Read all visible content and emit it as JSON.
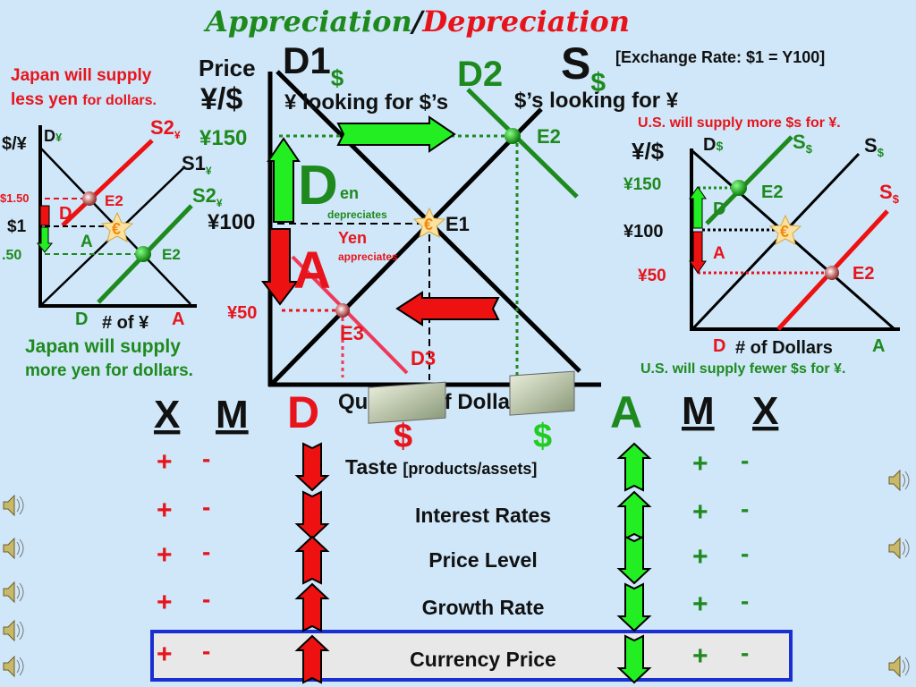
{
  "title": {
    "appreciation": "Appreciation",
    "slash": "/",
    "depreciation": "Depreciation"
  },
  "colors": {
    "background": "#cfe7f8",
    "red": "#e8141b",
    "green": "#1e8a1e",
    "bright_green": "#22ee22",
    "highlight_border": "#1a2fd0"
  },
  "main_graph": {
    "price_label": "Price",
    "unit_label": "¥/$",
    "exchange_rate": "[Exchange Rate:  $1 =  Y100]",
    "d1": "D1",
    "d1_sub": "$",
    "d2": "D2",
    "s": "S",
    "s_sub": "$",
    "yen_looking": "¥ looking for ",
    "yen_looking_bold": "$’s",
    "dollars_looking": "$’s looking for ¥",
    "p150": "¥150",
    "p100": "¥100",
    "p50": "¥50",
    "big_d": "D",
    "en": "en",
    "depreciates": "depreciates",
    "yen": "Yen",
    "appreciates": "appreciates",
    "big_a": "A",
    "e1": "E1",
    "e2": "E2",
    "e3": "E3",
    "d3": "D3",
    "x_axis": "Quantity of Dollars"
  },
  "left_graph": {
    "top_note_1": "Japan will supply",
    "top_note_2a": "less yen ",
    "top_note_2b": "for dollars.",
    "axis": "$/¥",
    "d": "D",
    "d_sub": "¥",
    "s2_red": "S2",
    "s1": "S1",
    "s2_green": "S2",
    "sub": "¥",
    "p150": "$1.50",
    "p100": "$1",
    "p50": ".50",
    "d_label": "D",
    "a_label": "A",
    "e2": "E2",
    "x_d": "D",
    "x_axis": "# of ¥",
    "x_a": "A",
    "bottom_note_1": "Japan will supply",
    "bottom_note_2": "more yen for dollars."
  },
  "right_graph": {
    "top_note": "U.S. will supply more $s for ¥.",
    "axis": "¥/$",
    "d": "D",
    "s": "S",
    "sub": "$",
    "p150": "¥150",
    "p100": "¥100",
    "p50": "¥50",
    "d_label": "D",
    "a_label": "A",
    "e2": "E2",
    "x_d": "D",
    "x_axis": "# of Dollars",
    "x_a": "A",
    "bottom_note": "U.S. will supply fewer $s for ¥."
  },
  "table": {
    "headers": {
      "x_left": "X",
      "m_left": "M",
      "d": "D",
      "a": "A",
      "m_right": "M",
      "x_right": "X"
    },
    "plus": "+",
    "minus": "-",
    "rows": [
      {
        "label": "Taste",
        "sub": "[products/assets]",
        "d_arrow": "down",
        "a_arrow": "up"
      },
      {
        "label": "Interest Rates",
        "sub": "",
        "d_arrow": "down",
        "a_arrow": "up"
      },
      {
        "label": "Price   Level",
        "sub": "",
        "d_arrow": "up",
        "a_arrow": "down"
      },
      {
        "label": "Growth Rate",
        "sub": "",
        "d_arrow": "up",
        "a_arrow": "down"
      },
      {
        "label": "Currency Price",
        "sub": "",
        "d_arrow": "up",
        "a_arrow": "down",
        "highlighted": true
      }
    ]
  },
  "icons": {
    "speaker": "speaker-icon",
    "dollar_bill": "dollar-bill-icon",
    "equilibrium_star": "euro-star-icon"
  }
}
